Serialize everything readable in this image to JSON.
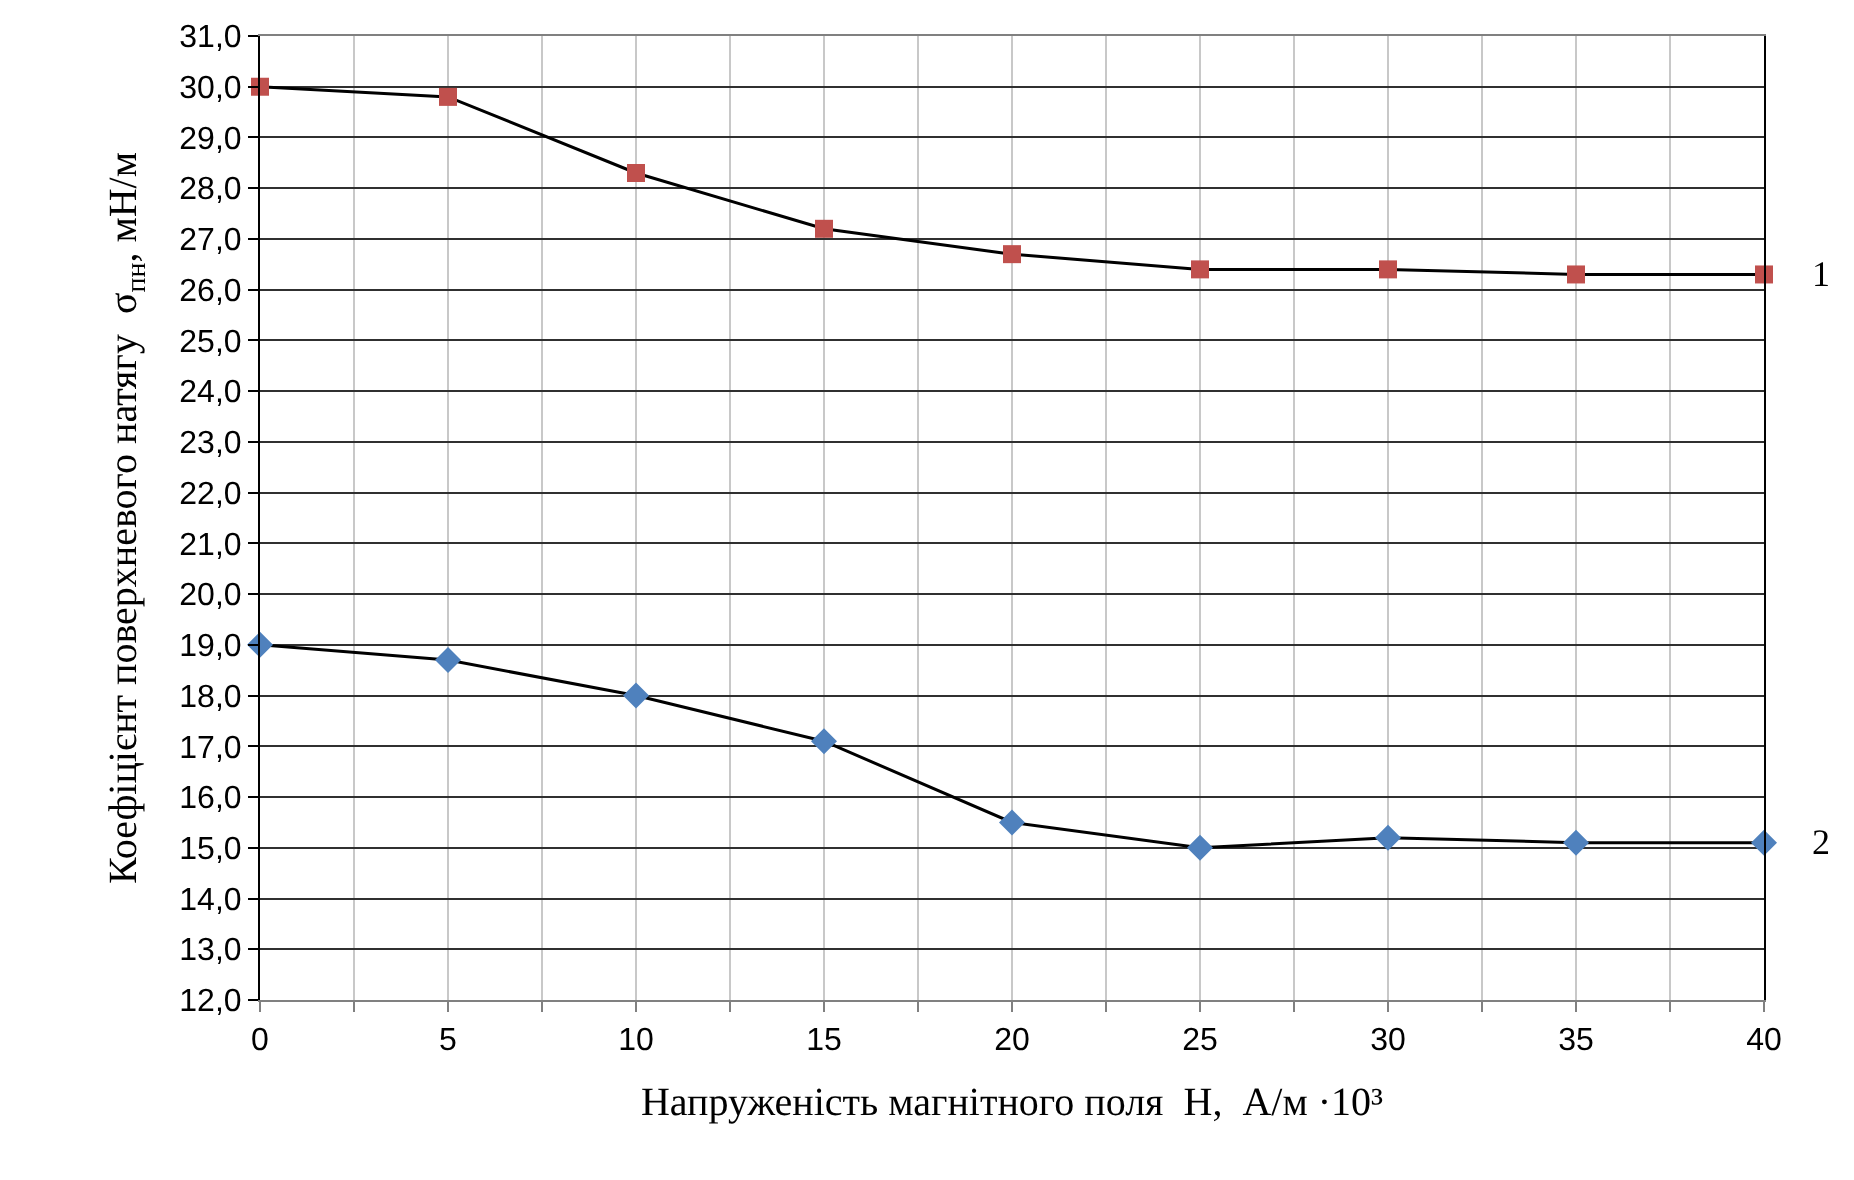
{
  "chart_data": {
    "type": "line",
    "xlabel": "Напруженість магнітного поля  H,  А/м ·10³",
    "ylabel": "Коефіцієнт поверхневого натягу  σ$_{пн}$, мН/м",
    "x": [
      0,
      5,
      10,
      15,
      20,
      25,
      30,
      35,
      40
    ],
    "series": [
      {
        "name": "1",
        "color": "#c0504d",
        "marker": "square",
        "values": [
          30.0,
          29.8,
          28.3,
          27.2,
          26.7,
          26.4,
          26.4,
          26.3,
          26.3
        ]
      },
      {
        "name": "2",
        "color": "#4f81bd",
        "marker": "diamond",
        "values": [
          19.0,
          18.7,
          18.0,
          17.1,
          15.5,
          15.0,
          15.2,
          15.1,
          15.1
        ]
      }
    ],
    "xlim": [
      0,
      40
    ],
    "xticks": [
      0,
      {
        "value": 2.5,
        "label": null
      },
      5,
      {
        "value": 7.5,
        "label": null
      },
      10,
      {
        "value": 12.5,
        "label": null
      },
      15,
      {
        "value": 17.5,
        "label": null
      },
      20,
      {
        "value": 22.5,
        "label": null
      },
      25,
      {
        "value": 27.5,
        "label": null
      },
      30,
      {
        "value": 32.5,
        "label": null
      },
      35,
      {
        "value": 37.5,
        "label": null
      },
      40
    ],
    "ylim": [
      12,
      31
    ],
    "yticks": [
      {
        "value": 12,
        "label": "12,0"
      },
      {
        "value": 13,
        "label": "13,0"
      },
      {
        "value": 14,
        "label": "14,0"
      },
      {
        "value": 15,
        "label": "15,0"
      },
      {
        "value": 16,
        "label": "16,0"
      },
      {
        "value": 17,
        "label": "17,0"
      },
      {
        "value": 18,
        "label": "18,0"
      },
      {
        "value": 19,
        "label": "19,0"
      },
      {
        "value": 20,
        "label": "20,0"
      },
      {
        "value": 21,
        "label": "21,0"
      },
      {
        "value": 22,
        "label": "22,0"
      },
      {
        "value": 23,
        "label": "23,0"
      },
      {
        "value": 24,
        "label": "24,0"
      },
      {
        "value": 25,
        "label": "25,0"
      },
      {
        "value": 26,
        "label": "26,0"
      },
      {
        "value": 27,
        "label": "27,0"
      },
      {
        "value": 28,
        "label": "28,0"
      },
      {
        "value": 29,
        "label": "29,0"
      },
      {
        "value": 30,
        "label": "30,0"
      },
      {
        "value": 31,
        "label": "31,0"
      }
    ],
    "grid": true,
    "legend": false,
    "line_style": "solid"
  }
}
